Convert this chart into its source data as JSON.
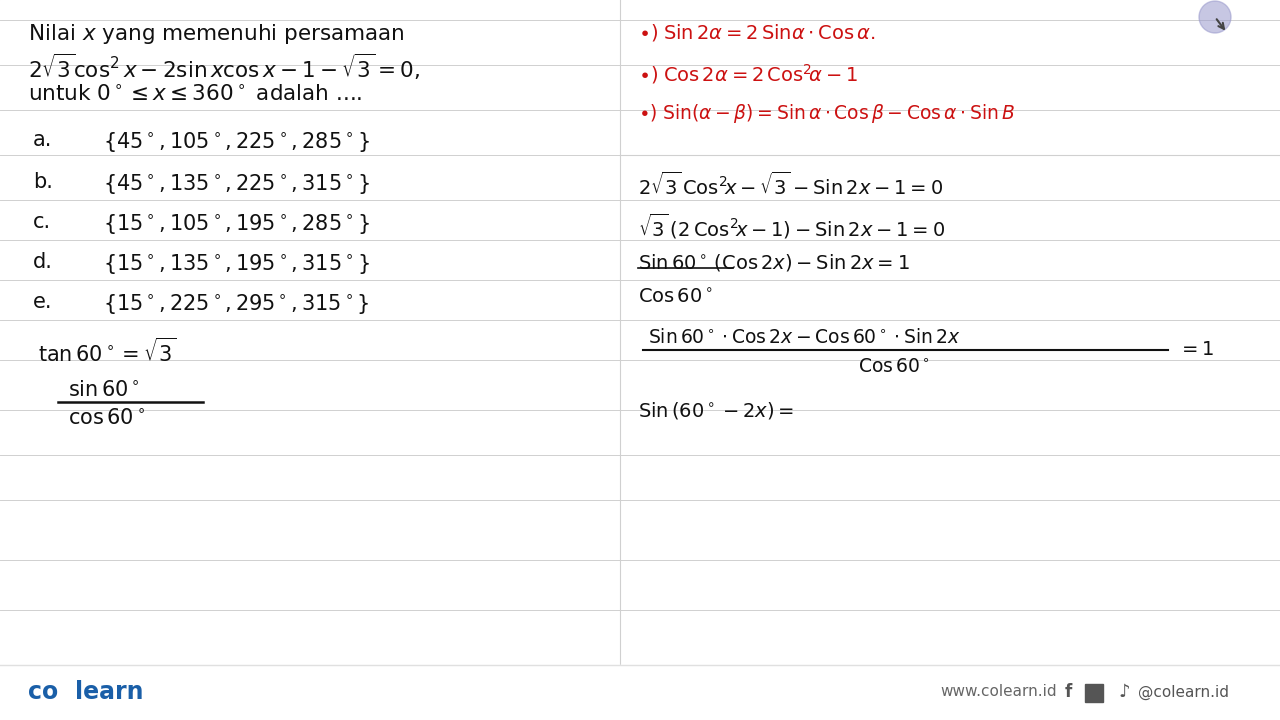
{
  "bg_color": "#f0f0f0",
  "white_color": "#ffffff",
  "black_color": "#1a1a1a",
  "red_color": "#cc1111",
  "blue_color": "#1a5fa8",
  "dark_color": "#111111",
  "divider_color": "#c8c8c8",
  "line_color": "#d0d0d0",
  "title_line1": "Nilai $x$ yang memenuhi persamaan",
  "title_line2": "$2\\sqrt{3}\\cos^2 x - 2\\sin x\\cos x - 1 - \\sqrt{3} = 0,$",
  "title_line3": "untuk $0^\\circ \\leq x \\leq 360^\\circ$ adalah ....",
  "options_labels": [
    "a.",
    "b.",
    "c.",
    "d.",
    "e."
  ],
  "options_values": [
    "$\\{45^\\circ,105^\\circ,225^\\circ,285^\\circ\\}$",
    "$\\{45^\\circ,135^\\circ,225^\\circ,315^\\circ\\}$",
    "$\\{15^\\circ,105^\\circ,195^\\circ,285^\\circ\\}$",
    "$\\{15^\\circ,135^\\circ,195^\\circ,315^\\circ\\}$",
    "$\\{15^\\circ,225^\\circ,295^\\circ,315^\\circ\\}$"
  ],
  "tan_text": "$\\tan 60^\\circ = \\sqrt{3}$",
  "frac_num": "$\\sin 60^\\circ$",
  "frac_den": "$\\cos 60^\\circ$",
  "red_formula_1": "$\\bullet)\\;\\mathrm{Sin}\\,2\\alpha = 2\\,\\mathrm{Sin}\\alpha \\cdot \\mathrm{Cos}\\,\\alpha.$",
  "red_formula_2": "$\\bullet)\\;\\mathrm{Cos}\\,2\\alpha = 2\\,\\mathrm{Cos}^2\\!\\alpha - 1$",
  "red_formula_3": "$\\bullet)\\;\\mathrm{Sin}(\\alpha-\\beta) = \\mathrm{Sin}\\,\\alpha\\cdot\\mathrm{Cos}\\,\\beta - \\mathrm{Cos}\\,\\alpha\\cdot\\mathrm{Sin}\\,B$",
  "step1": "$2\\sqrt{3}\\,\\mathrm{Cos}^2\\!x - \\sqrt{3} - \\mathrm{Sin}\\,2x - 1 = 0$",
  "step2": "$\\sqrt{3}\\,(2\\,\\mathrm{Cos}^2\\!x - 1) - \\mathrm{Sin}\\,2x - 1 = 0$",
  "step3a": "$\\mathrm{Sin}\\,60^\\circ\\,(\\mathrm{Cos}\\,2x) - \\mathrm{Sin}\\,2x = 1$",
  "step3b": "$\\mathrm{Cos}\\,60^\\circ$",
  "step4_num": "$\\mathrm{Sin}\\,60^\\circ\\cdot\\mathrm{Cos}\\,2x - \\mathrm{Cos}\\,60^\\circ\\cdot\\mathrm{Sin}\\,2x$",
  "step4_den": "$\\mathrm{Cos}\\,60^\\circ$",
  "step4_rhs": "$= 1$",
  "step5": "$\\mathrm{Sin}\\,(60^\\circ - 2x) =$",
  "footer_left": "co  learn",
  "footer_url": "www.colearn.id",
  "footer_social": "@colearn.id"
}
